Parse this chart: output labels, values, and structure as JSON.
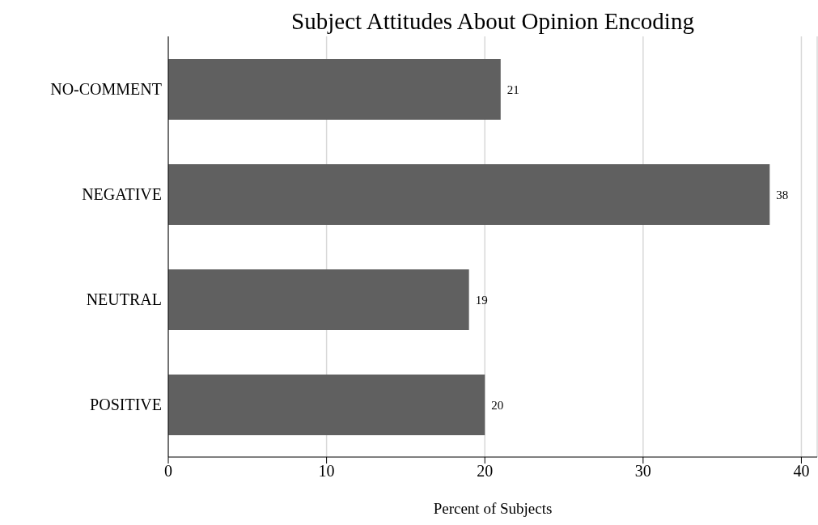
{
  "chart_data": {
    "type": "bar",
    "orientation": "horizontal",
    "title": "Subject Attitudes About Opinion Encoding",
    "xlabel": "Percent of Subjects",
    "categories": [
      "NO-COMMENT",
      "NEGATIVE",
      "NEUTRAL",
      "POSITIVE"
    ],
    "values": [
      21,
      38,
      19,
      20
    ],
    "color": "#606060",
    "xlim": [
      0,
      41
    ],
    "xticks": [
      0,
      10,
      20,
      30,
      40
    ],
    "grid": "x",
    "data_labels": true
  }
}
